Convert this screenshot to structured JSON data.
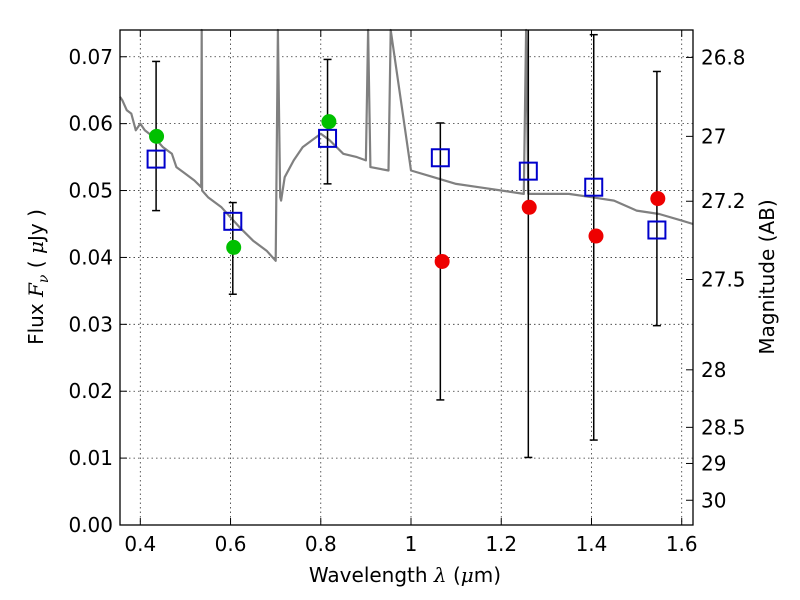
{
  "chart_data": {
    "type": "scatter",
    "xlabel": "Wavelength λ (μm)",
    "ylabel": "Flux F_ν ( μJy )",
    "y2label": "Magnitude (AB)",
    "xlim": [
      0.355,
      1.625
    ],
    "ylim": [
      0.0,
      0.074
    ],
    "grid": true,
    "x_ticks": [
      0.4,
      0.6,
      0.8,
      1.0,
      1.2,
      1.4,
      1.6
    ],
    "x_tick_labels": [
      "0.4",
      "0.6",
      "0.8",
      "1",
      "1.2",
      "1.4",
      "1.6"
    ],
    "y_ticks": [
      0.0,
      0.01,
      0.02,
      0.03,
      0.04,
      0.05,
      0.06,
      0.07
    ],
    "y_tick_labels": [
      "0.00",
      "0.01",
      "0.02",
      "0.03",
      "0.04",
      "0.05",
      "0.06",
      "0.07"
    ],
    "y2_ticks": [
      {
        "label": "26.8",
        "flux": 0.0699
      },
      {
        "label": "27",
        "flux": 0.0581
      },
      {
        "label": "27.2",
        "flux": 0.0484
      },
      {
        "label": "27.5",
        "flux": 0.0367
      },
      {
        "label": "28",
        "flux": 0.0232
      },
      {
        "label": "28.5",
        "flux": 0.0146
      },
      {
        "label": "29",
        "flux": 0.0092
      },
      {
        "label": "30",
        "flux": 0.0037
      }
    ],
    "colors": {
      "spectrum": "#808080",
      "green_points": "#00c000",
      "red_points": "#ee0000",
      "model_squares": "#0000cc",
      "error_bars": "#000000"
    },
    "series": [
      {
        "marker": "spectrum-line",
        "x": [
          0.355,
          0.36,
          0.37,
          0.38,
          0.39,
          0.4,
          0.41,
          0.42,
          0.43,
          0.45,
          0.47,
          0.48,
          0.5,
          0.52,
          0.535,
          0.536,
          0.537,
          0.55,
          0.58,
          0.6,
          0.62,
          0.65,
          0.68,
          0.7,
          0.705,
          0.71,
          0.712,
          0.72,
          0.74,
          0.76,
          0.78,
          0.8,
          0.82,
          0.85,
          0.88,
          0.9,
          0.905,
          0.91,
          0.95,
          0.955,
          1.0,
          1.05,
          1.1,
          1.15,
          1.2,
          1.25,
          1.255,
          1.26,
          1.3,
          1.35,
          1.4,
          1.45,
          1.5,
          1.55,
          1.6,
          1.625
        ],
        "y": [
          0.064,
          0.0635,
          0.062,
          0.0615,
          0.059,
          0.06,
          0.059,
          0.0585,
          0.058,
          0.0565,
          0.0555,
          0.0535,
          0.0525,
          0.0515,
          0.0505,
          0.074,
          0.05,
          0.049,
          0.0475,
          0.046,
          0.0445,
          0.0425,
          0.041,
          0.0395,
          0.074,
          0.049,
          0.0485,
          0.052,
          0.0545,
          0.0565,
          0.0575,
          0.0585,
          0.0575,
          0.0555,
          0.055,
          0.0545,
          0.074,
          0.0535,
          0.053,
          0.074,
          0.053,
          0.052,
          0.051,
          0.0505,
          0.05,
          0.0495,
          0.074,
          0.0495,
          0.0495,
          0.0495,
          0.049,
          0.0485,
          0.047,
          0.0465,
          0.0455,
          0.045
        ]
      },
      {
        "marker": "error-bars",
        "x": [
          0.435,
          0.605,
          0.815,
          1.065,
          1.26,
          1.405,
          1.545
        ],
        "ylow": [
          0.047,
          0.0345,
          0.051,
          0.0187,
          0.0101,
          0.0127,
          0.0298
        ],
        "yhigh": [
          0.0693,
          0.0482,
          0.0696,
          0.0601,
          0.074,
          0.0733,
          0.0678
        ]
      },
      {
        "marker": "green-circles",
        "x": [
          0.436,
          0.607,
          0.818
        ],
        "y": [
          0.0581,
          0.0415,
          0.0603
        ]
      },
      {
        "marker": "red-circles",
        "x": [
          1.069,
          1.262,
          1.41,
          1.547
        ],
        "y": [
          0.0394,
          0.0475,
          0.0432,
          0.0488
        ]
      },
      {
        "marker": "blue-squares",
        "x": [
          0.435,
          0.605,
          0.815,
          1.065,
          1.26,
          1.405,
          1.545
        ],
        "y": [
          0.0547,
          0.0454,
          0.0578,
          0.0549,
          0.0529,
          0.0505,
          0.0441
        ]
      }
    ]
  }
}
